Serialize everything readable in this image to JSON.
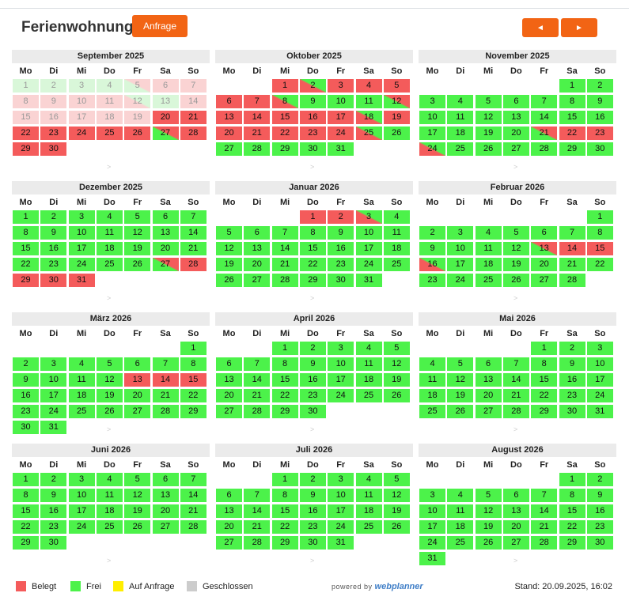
{
  "header": {
    "title": "Ferienwohnung",
    "request_label": "Anfrage",
    "prev_label": "◄",
    "next_label": "►"
  },
  "weekdays": [
    "Mo",
    "Di",
    "Mi",
    "Do",
    "Fr",
    "Sa",
    "So"
  ],
  "colors": {
    "booked": "#f45b5b",
    "free": "#4cf24a",
    "past_free": "#d9f7d9",
    "past_booked": "#fad3d3",
    "on_request": "#ffee00",
    "closed": "#cccccc"
  },
  "months": [
    {
      "title": "September 2025",
      "offset": 0,
      "days": 30,
      "states": [
        "pf",
        "pf",
        "pf",
        "pf",
        "pf/pb",
        "pb",
        "pb",
        "pb",
        "pb",
        "pb",
        "pb",
        "pb/pf",
        "pf",
        "pb",
        "pb",
        "pb",
        "pb",
        "pb",
        "pb",
        "b",
        "b",
        "b",
        "b",
        "b",
        "b",
        "b",
        "f/b",
        "b",
        "b",
        "b"
      ]
    },
    {
      "title": "Oktober 2025",
      "offset": 2,
      "days": 31,
      "states": [
        "b",
        "b/f",
        "b",
        "b",
        "b",
        "b",
        "b",
        "b/f",
        "f",
        "f",
        "f",
        "f/b",
        "b",
        "b",
        "b",
        "b",
        "b",
        "b/f",
        "b",
        "b",
        "b",
        "b",
        "b",
        "b",
        "b/f",
        "f",
        "f",
        "f",
        "f",
        "f",
        "f"
      ]
    },
    {
      "title": "November 2025",
      "offset": 5,
      "days": 30,
      "states": [
        "f",
        "f",
        "f",
        "f",
        "f",
        "f",
        "f",
        "f",
        "f",
        "f",
        "f",
        "f",
        "f",
        "f",
        "f",
        "f",
        "f",
        "f",
        "f",
        "f",
        "f/b",
        "b",
        "b",
        "b/f",
        "f",
        "f",
        "f",
        "f",
        "f",
        "f"
      ]
    },
    {
      "title": "Dezember 2025",
      "offset": 0,
      "days": 31,
      "states": [
        "f",
        "f",
        "f",
        "f",
        "f",
        "f",
        "f",
        "f",
        "f",
        "f",
        "f",
        "f",
        "f",
        "f",
        "f",
        "f",
        "f",
        "f",
        "f",
        "f",
        "f",
        "f",
        "f",
        "f",
        "f",
        "f",
        "f/b",
        "b",
        "b",
        "b",
        "b"
      ]
    },
    {
      "title": "Januar 2026",
      "offset": 3,
      "days": 31,
      "states": [
        "b",
        "b",
        "b/f",
        "f",
        "f",
        "f",
        "f",
        "f",
        "f",
        "f",
        "f",
        "f",
        "f",
        "f",
        "f",
        "f",
        "f",
        "f",
        "f",
        "f",
        "f",
        "f",
        "f",
        "f",
        "f",
        "f",
        "f",
        "f",
        "f",
        "f",
        "f"
      ]
    },
    {
      "title": "Februar 2026",
      "offset": 6,
      "days": 28,
      "states": [
        "f",
        "f",
        "f",
        "f",
        "f",
        "f",
        "f",
        "f",
        "f",
        "f",
        "f",
        "f",
        "f/b",
        "b",
        "b",
        "b/f",
        "f",
        "f",
        "f",
        "f",
        "f",
        "f",
        "f",
        "f",
        "f",
        "f",
        "f",
        "f"
      ]
    },
    {
      "title": "März 2026",
      "offset": 6,
      "days": 31,
      "states": [
        "f",
        "f",
        "f",
        "f",
        "f",
        "f",
        "f",
        "f",
        "f",
        "f",
        "f",
        "f",
        "b",
        "b",
        "b",
        "f",
        "f",
        "f",
        "f",
        "f",
        "f",
        "f",
        "f",
        "f",
        "f",
        "f",
        "f",
        "f",
        "f",
        "f",
        "f"
      ]
    },
    {
      "title": "April 2026",
      "offset": 2,
      "days": 30,
      "states": "f"
    },
    {
      "title": "Mai 2026",
      "offset": 4,
      "days": 31,
      "states": "f"
    },
    {
      "title": "Juni 2026",
      "offset": 0,
      "days": 30,
      "states": "f"
    },
    {
      "title": "Juli 2026",
      "offset": 2,
      "days": 31,
      "states": "f"
    },
    {
      "title": "August 2026",
      "offset": 5,
      "days": 31,
      "states": "f"
    }
  ],
  "legend": [
    {
      "label": "Belegt",
      "color": "#f45b5b"
    },
    {
      "label": "Frei",
      "color": "#4cf24a"
    },
    {
      "label": "Auf Anfrage",
      "color": "#ffee00"
    },
    {
      "label": "Geschlossen",
      "color": "#cccccc"
    }
  ],
  "footer": {
    "powered_prefix": "powered by",
    "powered_brand": "webplanner",
    "stand": "Stand: 20.09.2025, 16:02",
    "more_arrow": ">"
  }
}
